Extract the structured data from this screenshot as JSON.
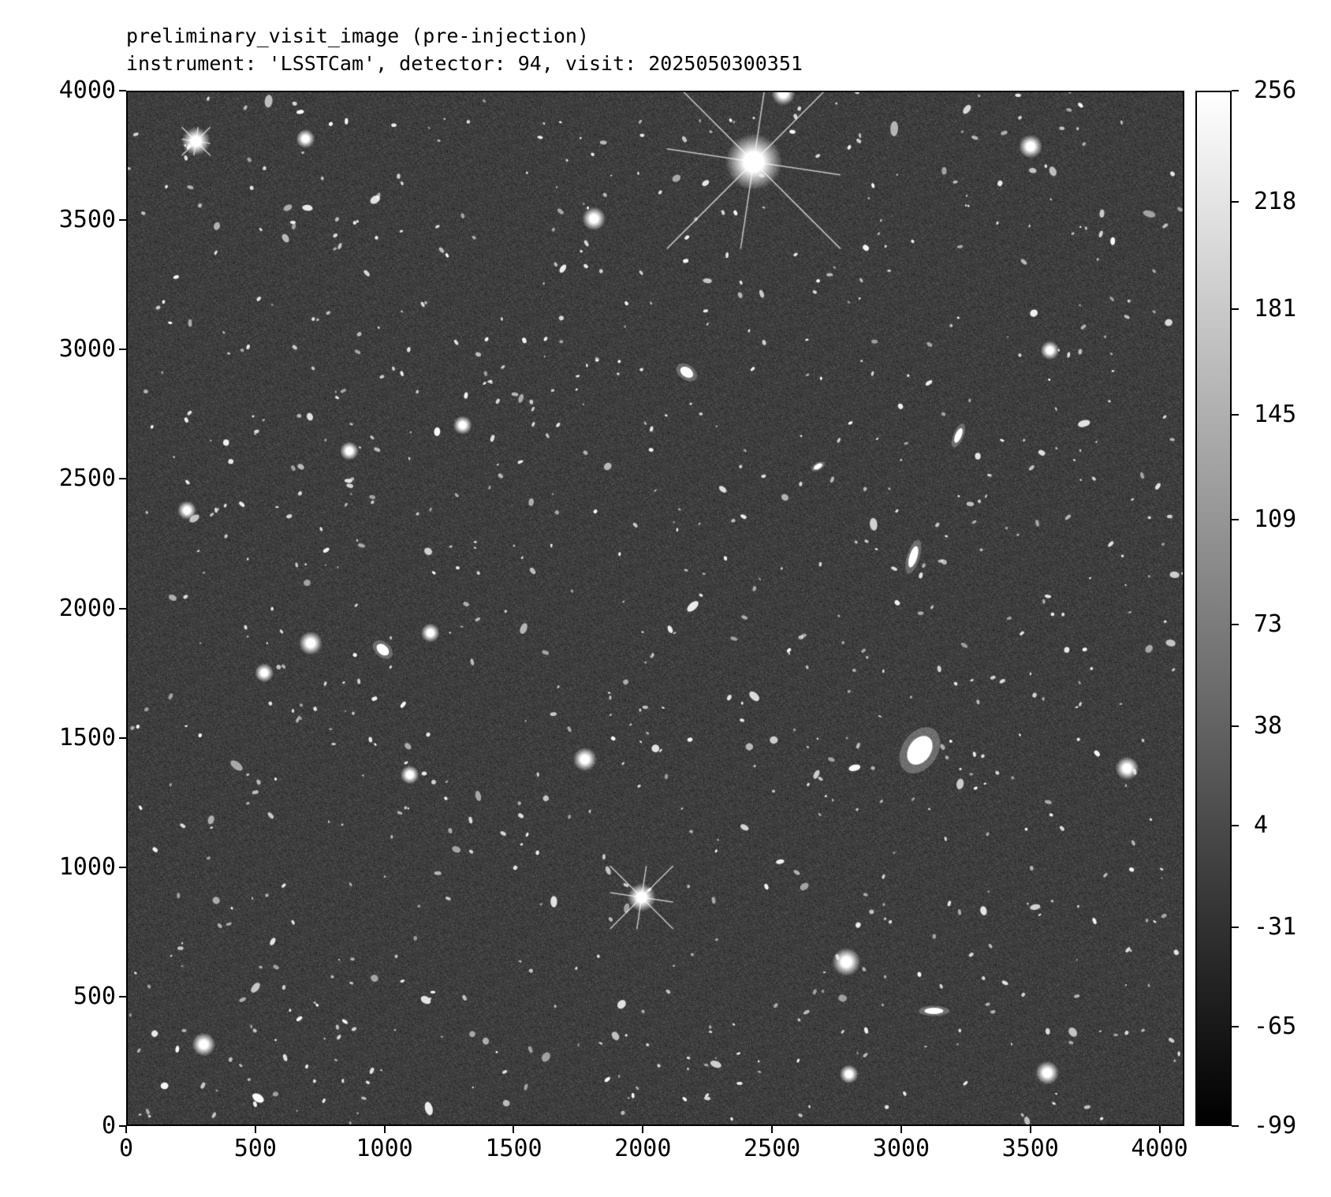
{
  "chart_data": {
    "type": "heatmap",
    "title": "preliminary_visit_image (pre-injection)",
    "subtitle": "instrument: 'LSSTCam', detector: 94, visit: 2025050300351",
    "colormap": "gray",
    "xlim": [
      0,
      4096
    ],
    "ylim": [
      0,
      4000
    ],
    "xticks": [
      "0",
      "500",
      "1000",
      "1500",
      "2000",
      "2500",
      "3000",
      "3500",
      "4000"
    ],
    "yticks": [
      "0",
      "500",
      "1000",
      "1500",
      "2000",
      "2500",
      "3000",
      "3500",
      "4000"
    ],
    "colorbar": {
      "range": [
        -99,
        256
      ],
      "ticks": [
        "-99",
        "-65",
        "-31",
        "4",
        "38",
        "73",
        "109",
        "145",
        "181",
        "218",
        "256"
      ]
    },
    "grid": false
  }
}
